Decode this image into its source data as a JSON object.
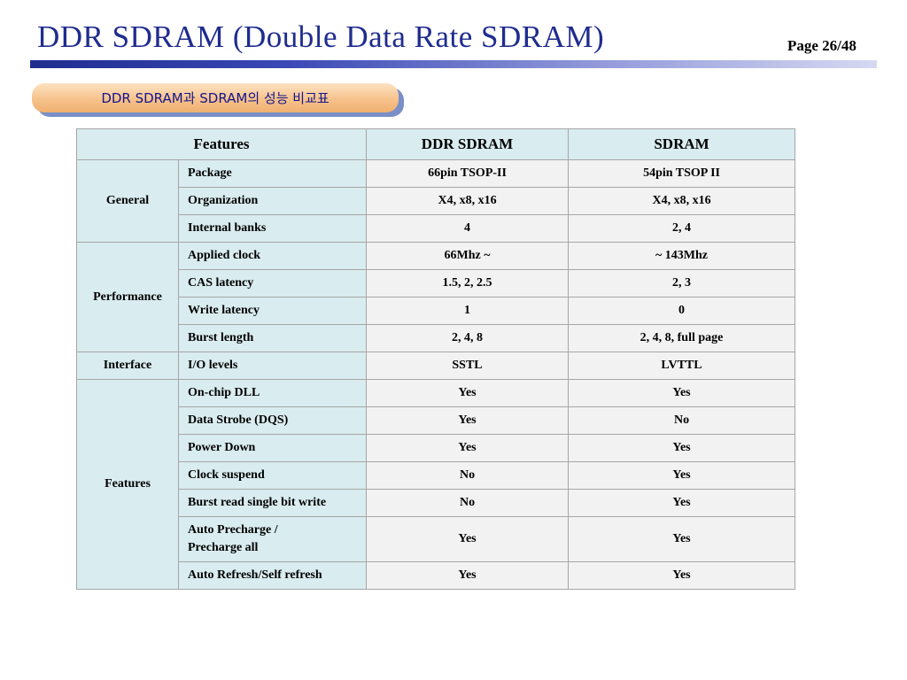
{
  "header": {
    "title": "DDR SDRAM (Double Data Rate SDRAM)",
    "page": "Page 26/48"
  },
  "subtitle": "DDR SDRAM과 SDRAM의 성능 비교표",
  "table": {
    "headers": [
      "Features",
      "DDR SDRAM",
      "SDRAM"
    ],
    "groups": [
      {
        "name": "General",
        "rows": [
          {
            "feature": "Package",
            "ddr": "66pin TSOP-II",
            "sdram": "54pin TSOP II"
          },
          {
            "feature": "Organization",
            "ddr": "X4, x8, x16",
            "sdram": "X4, x8, x16"
          },
          {
            "feature": "Internal banks",
            "ddr": "4",
            "sdram": "2, 4"
          }
        ]
      },
      {
        "name": "Performance",
        "rows": [
          {
            "feature": "Applied clock",
            "ddr": "66Mhz ~",
            "sdram": "~ 143Mhz"
          },
          {
            "feature": "CAS latency",
            "ddr": "1.5, 2, 2.5",
            "sdram": "2, 3"
          },
          {
            "feature": "Write latency",
            "ddr": "1",
            "sdram": "0"
          },
          {
            "feature": "Burst length",
            "ddr": "2, 4, 8",
            "sdram": "2, 4, 8, full page"
          }
        ]
      },
      {
        "name": "Interface",
        "rows": [
          {
            "feature": "I/O levels",
            "ddr": "SSTL",
            "sdram": "LVTTL"
          }
        ]
      },
      {
        "name": "Features",
        "rows": [
          {
            "feature": "On-chip DLL",
            "ddr": "Yes",
            "sdram": "Yes"
          },
          {
            "feature": "Data Strobe (DQS)",
            "ddr": "Yes",
            "sdram": "No"
          },
          {
            "feature": "Power Down",
            "ddr": "Yes",
            "sdram": "Yes"
          },
          {
            "feature": "Clock suspend",
            "ddr": "No",
            "sdram": "Yes"
          },
          {
            "feature": "Burst read single bit write",
            "ddr": "No",
            "sdram": "Yes"
          },
          {
            "feature": "Auto Precharge /\nPrecharge all",
            "ddr": "Yes",
            "sdram": "Yes"
          },
          {
            "feature": "Auto Refresh/Self refresh",
            "ddr": "Yes",
            "sdram": "Yes"
          }
        ]
      }
    ]
  }
}
